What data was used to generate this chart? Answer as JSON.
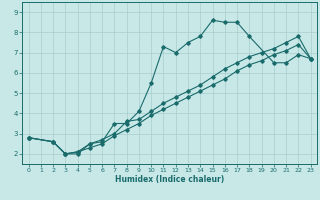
{
  "xlabel": "Humidex (Indice chaleur)",
  "bg_color": "#c8e8e8",
  "line_color": "#1a6b6b",
  "grid_color": "#a8cccc",
  "spine_color": "#1a6b6b",
  "xlim": [
    -0.5,
    23.5
  ],
  "ylim": [
    1.5,
    9.5
  ],
  "xticks": [
    0,
    1,
    2,
    3,
    4,
    5,
    6,
    7,
    8,
    9,
    10,
    11,
    12,
    13,
    14,
    15,
    16,
    17,
    18,
    19,
    20,
    21,
    22,
    23
  ],
  "yticks": [
    2,
    3,
    4,
    5,
    6,
    7,
    8,
    9
  ],
  "line1_x": [
    0,
    2,
    3,
    4,
    5,
    6,
    7,
    8,
    9,
    10,
    11,
    12,
    13,
    14,
    15,
    16,
    17,
    18,
    20,
    21,
    22,
    23
  ],
  "line1_y": [
    2.8,
    2.6,
    2.0,
    2.0,
    2.5,
    2.6,
    3.5,
    3.5,
    4.1,
    5.5,
    7.3,
    7.0,
    7.5,
    7.8,
    8.6,
    8.5,
    8.5,
    7.8,
    6.5,
    6.5,
    6.9,
    6.7
  ],
  "line2_x": [
    0,
    2,
    3,
    4,
    5,
    6,
    7,
    8,
    9,
    10,
    11,
    12,
    13,
    14,
    15,
    16,
    17,
    18,
    19,
    20,
    21,
    22,
    23
  ],
  "line2_y": [
    2.8,
    2.6,
    2.0,
    2.1,
    2.5,
    2.7,
    3.0,
    3.6,
    3.7,
    4.1,
    4.5,
    4.8,
    5.1,
    5.4,
    5.8,
    6.2,
    6.5,
    6.8,
    7.0,
    7.2,
    7.5,
    7.8,
    6.7
  ],
  "line3_x": [
    0,
    2,
    3,
    4,
    5,
    6,
    7,
    8,
    9,
    10,
    11,
    12,
    13,
    14,
    15,
    16,
    17,
    18,
    19,
    20,
    21,
    22,
    23
  ],
  "line3_y": [
    2.8,
    2.6,
    2.0,
    2.1,
    2.3,
    2.5,
    2.9,
    3.2,
    3.5,
    3.9,
    4.2,
    4.5,
    4.8,
    5.1,
    5.4,
    5.7,
    6.1,
    6.4,
    6.6,
    6.9,
    7.1,
    7.4,
    6.7
  ]
}
